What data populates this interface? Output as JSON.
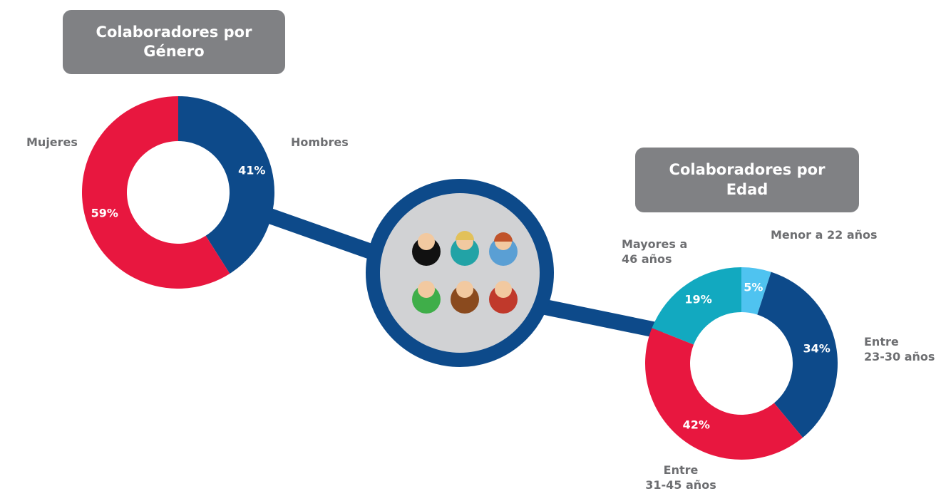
{
  "chart_data": [
    {
      "type": "donut",
      "title": "Colaboradores por\nGénero",
      "categories": [
        "Hombres",
        "Mujeres"
      ],
      "values": [
        41,
        59
      ],
      "value_labels": [
        "41%",
        "59%"
      ],
      "colors": [
        "#0d4a8a",
        "#e8173f"
      ]
    },
    {
      "type": "donut",
      "title": "Colaboradores por\nEdad",
      "categories": [
        "Menor a 22 años",
        "Entre\n23-30 años",
        "Entre\n31-45 años",
        "Mayores a\n46 años"
      ],
      "values": [
        5,
        34,
        42,
        19
      ],
      "value_labels": [
        "5%",
        "34%",
        "42%",
        "19%"
      ],
      "colors": [
        "#4fc3f0",
        "#0d4a8a",
        "#e8173f",
        "#12a9c0"
      ]
    }
  ]
}
